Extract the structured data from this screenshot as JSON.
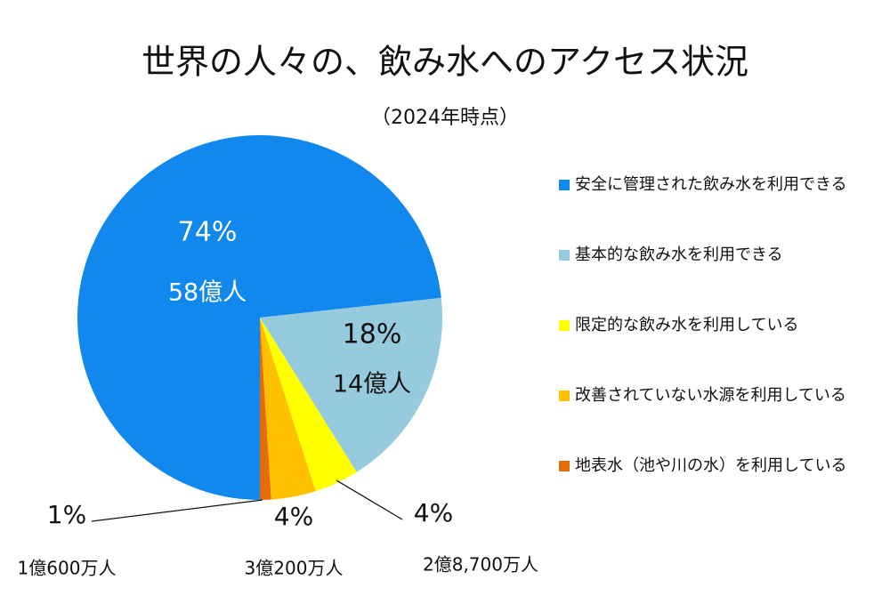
{
  "chart_data": {
    "type": "pie",
    "title": "世界の人々の、飲み水へのアクセス状況",
    "subtitle": "（2024年時点）",
    "categories": [
      "安全に管理された飲み水を利用できる",
      "基本的な飲み水を利用できる",
      "限定的な飲み水を利用している",
      "改善されていない水源を利用している",
      "地表水（池や川の水）を利用している"
    ],
    "values": [
      74,
      18,
      4,
      4,
      1
    ],
    "value_labels": [
      "74%",
      "18%",
      "4%",
      "4%",
      "1%"
    ],
    "people_labels": [
      "58億人",
      "14億人",
      "2億8,700万人",
      "3億200万人",
      "1億600万人"
    ],
    "colors": [
      "#1188ee",
      "#96cbdd",
      "#ffff00",
      "#ffc000",
      "#e46c0a"
    ]
  }
}
